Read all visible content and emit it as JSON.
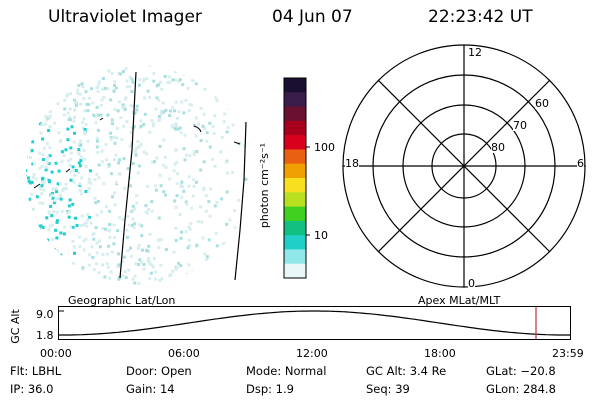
{
  "header": {
    "title": "Ultraviolet Imager",
    "date": "04 Jun 07",
    "time": "22:23:42 UT"
  },
  "colorbar": {
    "unit_label": "photon cm⁻²s⁻¹",
    "ticks": [
      "100",
      "10"
    ],
    "colors": [
      "#1a0f30",
      "#3a1c4a",
      "#6a1030",
      "#a8001c",
      "#d8001c",
      "#e86010",
      "#f0a000",
      "#f8e020",
      "#b8e020",
      "#40d020",
      "#10c080",
      "#20d0c8",
      "#90e8e8",
      "#e8f8f8"
    ]
  },
  "polar_plot": {
    "mlt_labels": {
      "top": "12",
      "left": "18",
      "right": "6",
      "bottom": "0"
    },
    "lat_labels": [
      "60",
      "70",
      "80"
    ]
  },
  "timeline": {
    "left_title": "Geographic Lat/Lon",
    "right_title": "Apex MLat/MLT",
    "axis_label": "GC Alt",
    "y_ticks": [
      "9.0",
      "1.8"
    ],
    "x_ticks": [
      "00:00",
      "06:00",
      "12:00",
      "18:00",
      "23:59"
    ],
    "marker_color": "#c03040"
  },
  "status": {
    "flt": "Flt: LBHL",
    "ip": "IP: 36.0",
    "door": "Door: Open",
    "gain": "Gain: 14",
    "mode": "Mode: Normal",
    "dsp": "Dsp:    1.9",
    "gc_alt": "GC Alt: 3.4 Re",
    "seq": "Seq: 39",
    "glat": "GLat: −20.8",
    "glon": "GLon: 284.8"
  },
  "image_colors": {
    "speckle_light": "#d8eeee",
    "speckle_mid": "#a8e0e0",
    "speckle_cyan": "#20d0d0"
  }
}
